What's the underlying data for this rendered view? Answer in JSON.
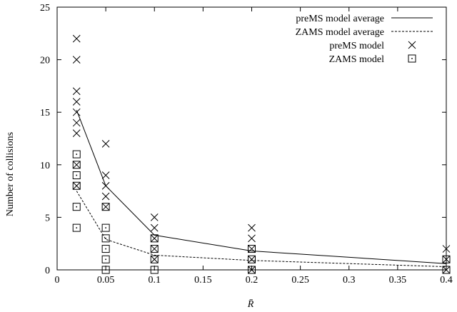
{
  "chart_data": {
    "type": "scatter",
    "title": "",
    "xlabel": "R̄",
    "ylabel": "Number of collisions",
    "xlim": [
      0,
      0.4
    ],
    "ylim": [
      0,
      25
    ],
    "x_ticks": [
      0,
      0.05,
      0.1,
      0.15,
      0.2,
      0.25,
      0.3,
      0.35,
      0.4
    ],
    "x_tick_labels": [
      "0",
      "0.05",
      "0.1",
      "0.15",
      "0.2",
      "0.25",
      "0.3",
      "0.35",
      "0.4"
    ],
    "y_ticks": [
      0,
      5,
      10,
      15,
      20,
      25
    ],
    "y_tick_labels": [
      "0",
      "5",
      "10",
      "15",
      "20",
      "25"
    ],
    "grid": false,
    "legend_position": "top-right",
    "series": [
      {
        "name": "preMS model average",
        "kind": "line",
        "style": "solid",
        "points": [
          [
            0.02,
            15.2
          ],
          [
            0.05,
            8.0
          ],
          [
            0.1,
            3.3
          ],
          [
            0.2,
            1.8
          ],
          [
            0.4,
            0.6
          ]
        ]
      },
      {
        "name": "ZAMS model average",
        "kind": "line",
        "style": "dashed",
        "points": [
          [
            0.02,
            7.5
          ],
          [
            0.05,
            2.9
          ],
          [
            0.1,
            1.4
          ],
          [
            0.2,
            0.9
          ],
          [
            0.4,
            0.3
          ]
        ]
      },
      {
        "name": "preMS model",
        "kind": "points",
        "marker": "x",
        "points": [
          [
            0.02,
            22
          ],
          [
            0.02,
            20
          ],
          [
            0.02,
            17
          ],
          [
            0.02,
            16
          ],
          [
            0.02,
            15
          ],
          [
            0.02,
            14
          ],
          [
            0.02,
            13
          ],
          [
            0.02,
            10
          ],
          [
            0.02,
            8
          ],
          [
            0.05,
            12
          ],
          [
            0.05,
            9
          ],
          [
            0.05,
            8
          ],
          [
            0.05,
            7
          ],
          [
            0.05,
            6
          ],
          [
            0.1,
            5
          ],
          [
            0.1,
            4
          ],
          [
            0.1,
            3
          ],
          [
            0.1,
            2
          ],
          [
            0.1,
            1
          ],
          [
            0.2,
            4
          ],
          [
            0.2,
            3
          ],
          [
            0.2,
            2
          ],
          [
            0.2,
            1
          ],
          [
            0.2,
            0
          ],
          [
            0.4,
            2
          ],
          [
            0.4,
            1
          ],
          [
            0.4,
            0
          ]
        ]
      },
      {
        "name": "ZAMS model",
        "kind": "points",
        "marker": "square",
        "points": [
          [
            0.02,
            11
          ],
          [
            0.02,
            10
          ],
          [
            0.02,
            9
          ],
          [
            0.02,
            8
          ],
          [
            0.02,
            6
          ],
          [
            0.02,
            4
          ],
          [
            0.05,
            6
          ],
          [
            0.05,
            4
          ],
          [
            0.05,
            3
          ],
          [
            0.05,
            2
          ],
          [
            0.05,
            1
          ],
          [
            0.05,
            0
          ],
          [
            0.1,
            3
          ],
          [
            0.1,
            2
          ],
          [
            0.1,
            1
          ],
          [
            0.1,
            0
          ],
          [
            0.2,
            2
          ],
          [
            0.2,
            1
          ],
          [
            0.2,
            0
          ],
          [
            0.4,
            1
          ],
          [
            0.4,
            0
          ]
        ]
      }
    ]
  }
}
